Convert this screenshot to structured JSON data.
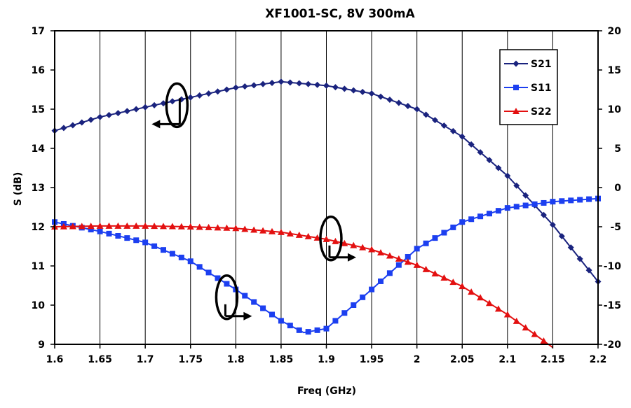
{
  "chart_data": {
    "type": "line",
    "title": "XF1001-SC, 8V 300mA",
    "xlabel": "Freq (GHz)",
    "ylabel": "S (dB)",
    "xlim": [
      1.6,
      2.2
    ],
    "ylim": [
      9,
      17
    ],
    "y2lim": [
      -20,
      20
    ],
    "x_ticks": [
      "1.6",
      "1.65",
      "1.7",
      "1.75",
      "1.8",
      "1.85",
      "1.9",
      "1.95",
      "2",
      "2.05",
      "2.1",
      "2.15",
      "2.2"
    ],
    "y_ticks": [
      "9",
      "10",
      "11",
      "12",
      "13",
      "14",
      "15",
      "16",
      "17"
    ],
    "y2_ticks": [
      "-20",
      "-15",
      "-10",
      "-5",
      "0",
      "5",
      "10",
      "15",
      "20"
    ],
    "grid": "vertical",
    "legend_position": "top-right",
    "series": [
      {
        "name": "S21",
        "axis": "left",
        "color": "#1a237e",
        "marker": "diamond",
        "x": [
          1.6,
          1.65,
          1.7,
          1.75,
          1.8,
          1.85,
          1.9,
          1.95,
          2.0,
          2.05,
          2.1,
          2.15,
          2.2
        ],
        "y": [
          14.45,
          14.8,
          15.05,
          15.3,
          15.55,
          15.7,
          15.6,
          15.4,
          15.0,
          14.3,
          13.3,
          12.05,
          10.6
        ]
      },
      {
        "name": "S11",
        "axis": "right",
        "color": "#1c3ff0",
        "marker": "square",
        "x": [
          1.6,
          1.65,
          1.7,
          1.75,
          1.8,
          1.85,
          1.875,
          1.9,
          1.95,
          2.0,
          2.05,
          2.1,
          2.15,
          2.2
        ],
        "y": [
          -4.4,
          -5.6,
          -7.0,
          -9.4,
          -13.0,
          -17.0,
          -18.5,
          -18.0,
          -13.0,
          -7.8,
          -4.4,
          -2.6,
          -1.8,
          -1.4
        ]
      },
      {
        "name": "S22",
        "axis": "right",
        "color": "#e31010",
        "marker": "triangle",
        "x": [
          1.6,
          1.65,
          1.7,
          1.75,
          1.8,
          1.85,
          1.9,
          1.95,
          2.0,
          2.05,
          2.1,
          2.15
        ],
        "y": [
          -5.0,
          -4.9,
          -4.9,
          -5.0,
          -5.2,
          -5.7,
          -6.6,
          -7.9,
          -9.9,
          -12.6,
          -16.2,
          -20.4
        ]
      }
    ],
    "annotations": [
      {
        "type": "axis-pointer",
        "series": "S21",
        "points_to": "left",
        "x": 1.735,
        "y_axis": "left",
        "y": 15.1
      },
      {
        "type": "axis-pointer",
        "series": "S22",
        "points_to": "right",
        "x": 1.905,
        "y_axis": "right",
        "y": -6.5
      },
      {
        "type": "axis-pointer",
        "series": "S11",
        "points_to": "right",
        "x": 1.79,
        "y_axis": "right",
        "y": -14.0
      }
    ]
  }
}
